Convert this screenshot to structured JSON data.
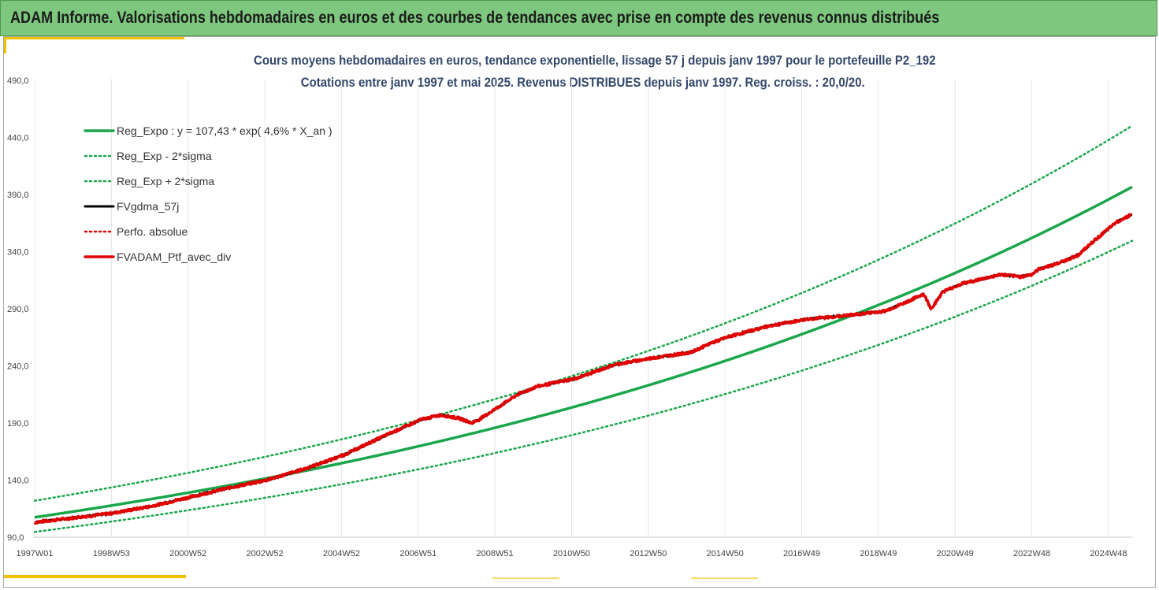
{
  "header": {
    "title": "ADAM Informe. Valorisations hebdomadaires en euros et des courbes de tendances avec prise en compte des revenus connus distribués"
  },
  "colors": {
    "header_bg": "#7dc87e",
    "accent": "#f2c200",
    "trend": "#1aa64a",
    "band": "#1aa64a",
    "gdma": "#000000",
    "perfo": "#e00000",
    "ptf": "#e00000"
  },
  "chart_data": {
    "type": "line",
    "title": "Cours moyens hebdomadaires  en euros, tendance exponentielle, lissage 57 j depuis janv 1997 pour le portefeuille P2_192",
    "subtitle": "Cotations entre janv 1997 et mai 2025. Revenus DISTRIBUES depuis janv 1997. Reg. croiss. : 20,0/20.",
    "xlabel": "",
    "ylabel": "",
    "x_ticks": [
      "1997W01",
      "1998W53",
      "2000W52",
      "2002W52",
      "2004W52",
      "2006W51",
      "2008W51",
      "2010W50",
      "2012W50",
      "2014W50",
      "2016W49",
      "2018W49",
      "2020W49",
      "2022W48",
      "2024W48"
    ],
    "x_range": [
      "1997W01",
      "2025W21"
    ],
    "y_ticks": [
      "90,0",
      "140,0",
      "190,0",
      "240,0",
      "290,0",
      "340,0",
      "390,0",
      "440,0",
      "490,0"
    ],
    "ylim": [
      90,
      490
    ],
    "grid": "vertical",
    "legend_position": "top-left",
    "regression": {
      "a": 107.43,
      "growth_per_year": 0.046,
      "sigma_band_factor": 1.135
    },
    "series": [
      {
        "name": "Reg_Expo : y = 107,43 * exp( 4,6% *  X_an )",
        "style": "solid-green"
      },
      {
        "name": "Reg_Exp - 2*sigma",
        "style": "dotted-green"
      },
      {
        "name": "Reg_Exp + 2*sigma",
        "style": "dotted-green"
      },
      {
        "name": "FVgdma_57j",
        "style": "solid-black"
      },
      {
        "name": "Perfo. absolue",
        "style": "dotted-red"
      },
      {
        "name": "FVADAM_Ptf_avec_div",
        "style": "solid-red",
        "x_years": [
          1997.0,
          1998.0,
          1999.0,
          2000.0,
          2001.0,
          2002.0,
          2003.0,
          2004.0,
          2005.0,
          2006.0,
          2007.0,
          2007.5,
          2008.0,
          2008.3,
          2008.5,
          2009.0,
          2009.5,
          2010.0,
          2011.0,
          2012.0,
          2013.0,
          2014.0,
          2014.5,
          2015.0,
          2016.0,
          2017.0,
          2018.0,
          2019.0,
          2019.5,
          2020.0,
          2020.2,
          2020.5,
          2021.0,
          2022.0,
          2022.5,
          2022.8,
          2023.0,
          2023.5,
          2024.0,
          2024.5,
          2025.0,
          2025.4
        ],
        "values": [
          103,
          107,
          111,
          117,
          125,
          133,
          140,
          150,
          162,
          178,
          193,
          197,
          194,
          190,
          193,
          204,
          215,
          222,
          229,
          241,
          247,
          252,
          260,
          266,
          275,
          281,
          284,
          288,
          295,
          303,
          290,
          305,
          312,
          320,
          318,
          320,
          325,
          330,
          337,
          352,
          366,
          373
        ]
      }
    ]
  },
  "legend": {
    "reg_expo": "Reg_Expo : y = 107,43 * exp( 4,6% *  X_an )",
    "reg_minus": "Reg_Exp - 2*sigma",
    "reg_plus": "Reg_Exp + 2*sigma",
    "gdma": "FVgdma_57j",
    "perfo": "Perfo. absolue",
    "ptf": "FVADAM_Ptf_avec_div"
  }
}
